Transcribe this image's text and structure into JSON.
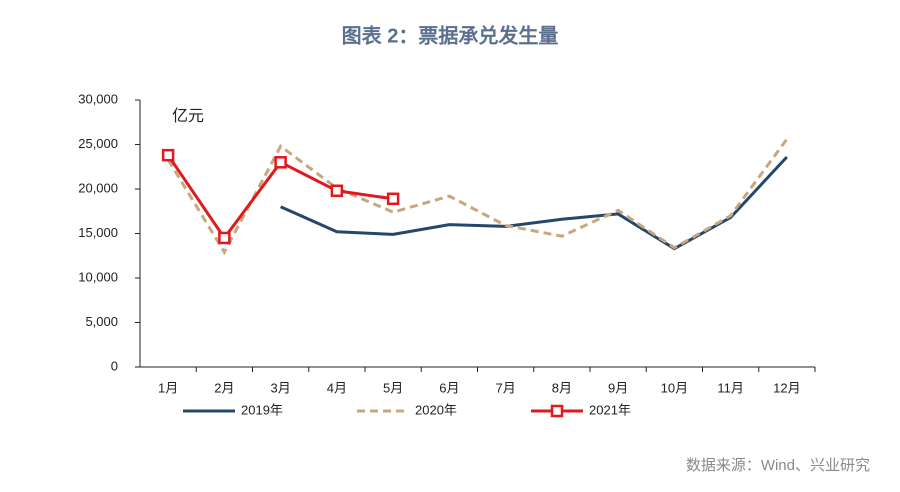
{
  "chart_data": {
    "type": "line",
    "title": "图表 2：票据承兑发生量",
    "y_label": "亿元",
    "source": "数据来源：Wind、兴业研究",
    "categories": [
      "1月",
      "2月",
      "3月",
      "4月",
      "5月",
      "6月",
      "7月",
      "8月",
      "9月",
      "10月",
      "11月",
      "12月"
    ],
    "series": [
      {
        "name": "2019年",
        "color": "#24476b",
        "dash": "solid",
        "marker": "none",
        "values": [
          null,
          null,
          18000,
          15200,
          14900,
          16000,
          15800,
          16600,
          17200,
          13300,
          16800,
          23600
        ]
      },
      {
        "name": "2020年",
        "color": "#c9a77c",
        "dash": "dashed",
        "marker": "none",
        "values": [
          23300,
          12900,
          24800,
          20100,
          17400,
          19200,
          15900,
          14700,
          17600,
          13400,
          17000,
          25600
        ]
      },
      {
        "name": "2021年",
        "color": "#e0191e",
        "dash": "solid",
        "marker": "square",
        "values": [
          23800,
          14500,
          23000,
          19800,
          18900,
          null,
          null,
          null,
          null,
          null,
          null,
          null
        ]
      }
    ],
    "ylim": [
      0,
      30000
    ],
    "yticks": [
      0,
      {
        "value": 5000,
        "label": "5,000"
      },
      {
        "value": 10000,
        "label": "10,000"
      },
      {
        "value": 15000,
        "label": "15,000"
      },
      {
        "value": 20000,
        "label": "20,000"
      },
      {
        "value": 25000,
        "label": "25,000"
      },
      {
        "value": 30000,
        "label": "30,000"
      }
    ],
    "grid": false,
    "legend": "bottom"
  }
}
